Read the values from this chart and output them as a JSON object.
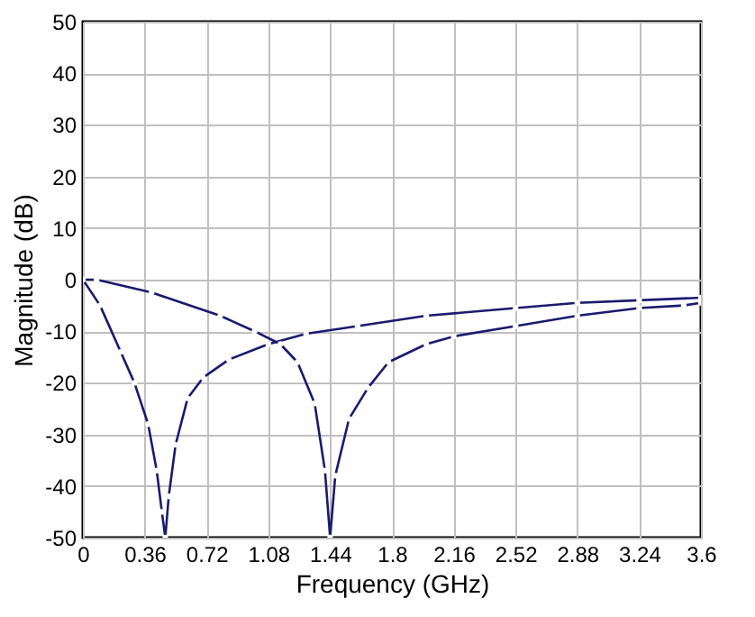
{
  "chart_data": {
    "type": "line",
    "xlabel": "Frequency (GHz)",
    "ylabel": "Magnitude (dB)",
    "xlim": [
      0,
      3.6
    ],
    "xticks": [
      0,
      0.36,
      0.72,
      1.08,
      1.44,
      1.8,
      2.16,
      2.52,
      2.88,
      3.24,
      3.6
    ],
    "ylim": [
      -50,
      50
    ],
    "yticks": [
      -50,
      -40,
      -30,
      -20,
      -10,
      0,
      10,
      20,
      30,
      40,
      50
    ],
    "grid": true,
    "marker": "circle",
    "line_style": "solid",
    "series": [
      {
        "color": "#1a1a6e",
        "x": [
          0,
          0.1,
          0.22,
          0.3,
          0.38,
          0.43,
          0.46,
          0.48,
          0.5,
          0.54,
          0.61,
          0.7,
          0.85,
          1.08,
          1.3,
          1.6,
          2.0,
          2.52,
          2.88,
          3.24,
          3.6
        ],
        "values": [
          0,
          -5,
          -14,
          -20,
          -28,
          -37,
          -45,
          -50,
          -42,
          -32,
          -23,
          -19,
          -15.5,
          -12.5,
          -10.5,
          -9,
          -7,
          -5.5,
          -4.5,
          -4,
          -3.5
        ]
      },
      {
        "color": "#1a1a6e",
        "x": [
          0,
          0.08,
          0.4,
          0.8,
          1.0,
          1.15,
          1.25,
          1.35,
          1.41,
          1.44,
          1.47,
          1.55,
          1.66,
          1.78,
          2.0,
          2.16,
          2.52,
          2.88,
          3.24,
          3.5,
          3.6
        ],
        "values": [
          0,
          0,
          -2.5,
          -7,
          -10,
          -12.5,
          -16,
          -24,
          -37,
          -50,
          -38,
          -27,
          -21,
          -16,
          -12.5,
          -11,
          -9,
          -7,
          -5.5,
          -5,
          -4.5
        ]
      }
    ]
  }
}
